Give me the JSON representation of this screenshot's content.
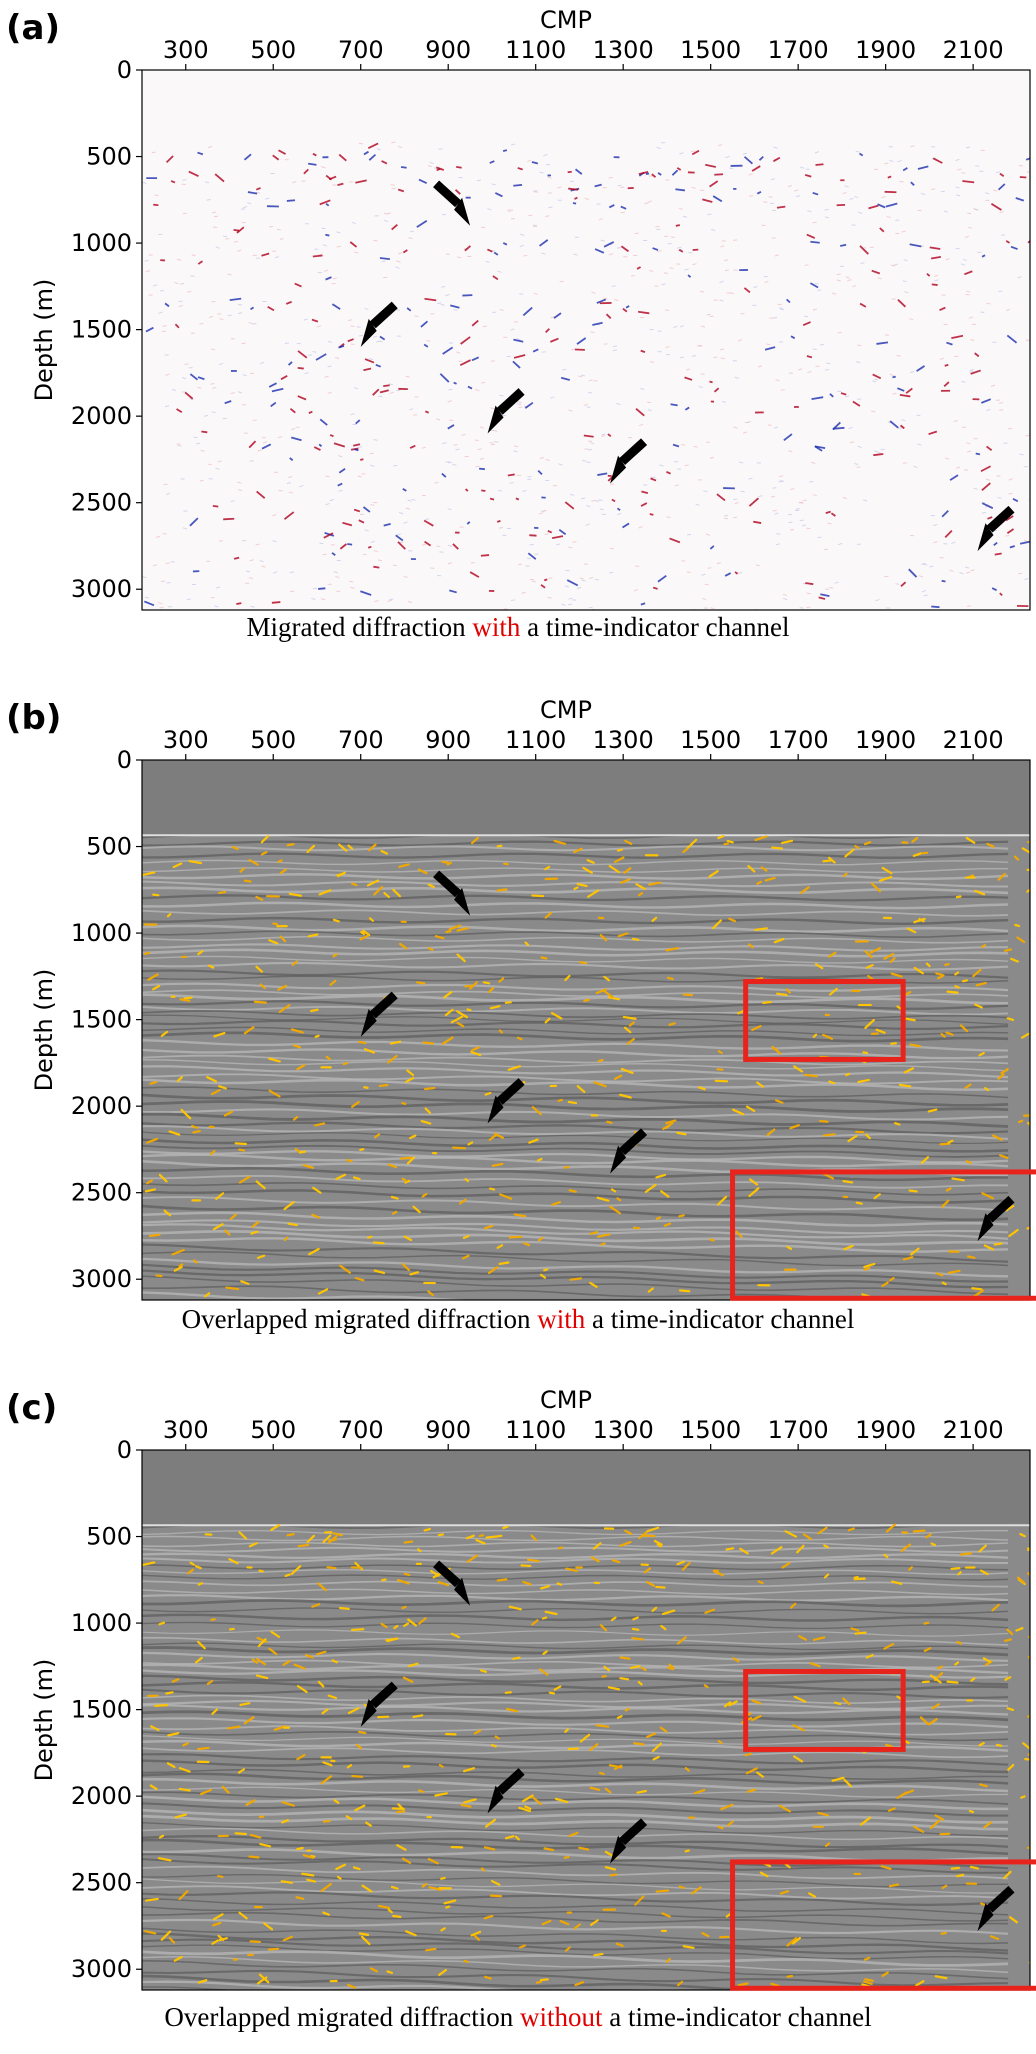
{
  "panels": [
    {
      "label": "(a)",
      "caption_pre": "Migrated diffraction ",
      "caption_hl": "with",
      "caption_post": " a time-indicator channel",
      "style": "diffraction-red-blue",
      "red_boxes": false
    },
    {
      "label": "(b)",
      "caption_pre": "Overlapped migrated diffraction ",
      "caption_hl": "with",
      "caption_post": " a time-indicator channel",
      "style": "overlay-gray-yellow",
      "red_boxes": true
    },
    {
      "label": "(c)",
      "caption_pre": "Overlapped migrated diffraction ",
      "caption_hl": "without",
      "caption_post": " a time-indicator channel",
      "style": "overlay-gray-yellow",
      "red_boxes": true
    }
  ],
  "axes": {
    "x_title": "CMP",
    "y_title": "Depth (m)",
    "x_ticks": [
      "300",
      "500",
      "700",
      "900",
      "1100",
      "1300",
      "1500",
      "1700",
      "1900",
      "2100"
    ],
    "y_ticks": [
      "0",
      "500",
      "1000",
      "1500",
      "2000",
      "2500",
      "3000"
    ]
  },
  "colors": {
    "highlight": "#e00000",
    "box": "#e8231c",
    "arrow": "#000000",
    "diffraction_yellow": "#ffc400"
  },
  "arrow_positions_cmp_depth": [
    [
      950,
      900
    ],
    [
      700,
      1600
    ],
    [
      990,
      2100
    ],
    [
      1270,
      2390
    ],
    [
      2110,
      2780
    ]
  ],
  "box_extents_cmp_depth": [
    [
      1580,
      1940,
      1280,
      1730
    ],
    [
      1550,
      2280,
      2380,
      3110
    ]
  ]
}
